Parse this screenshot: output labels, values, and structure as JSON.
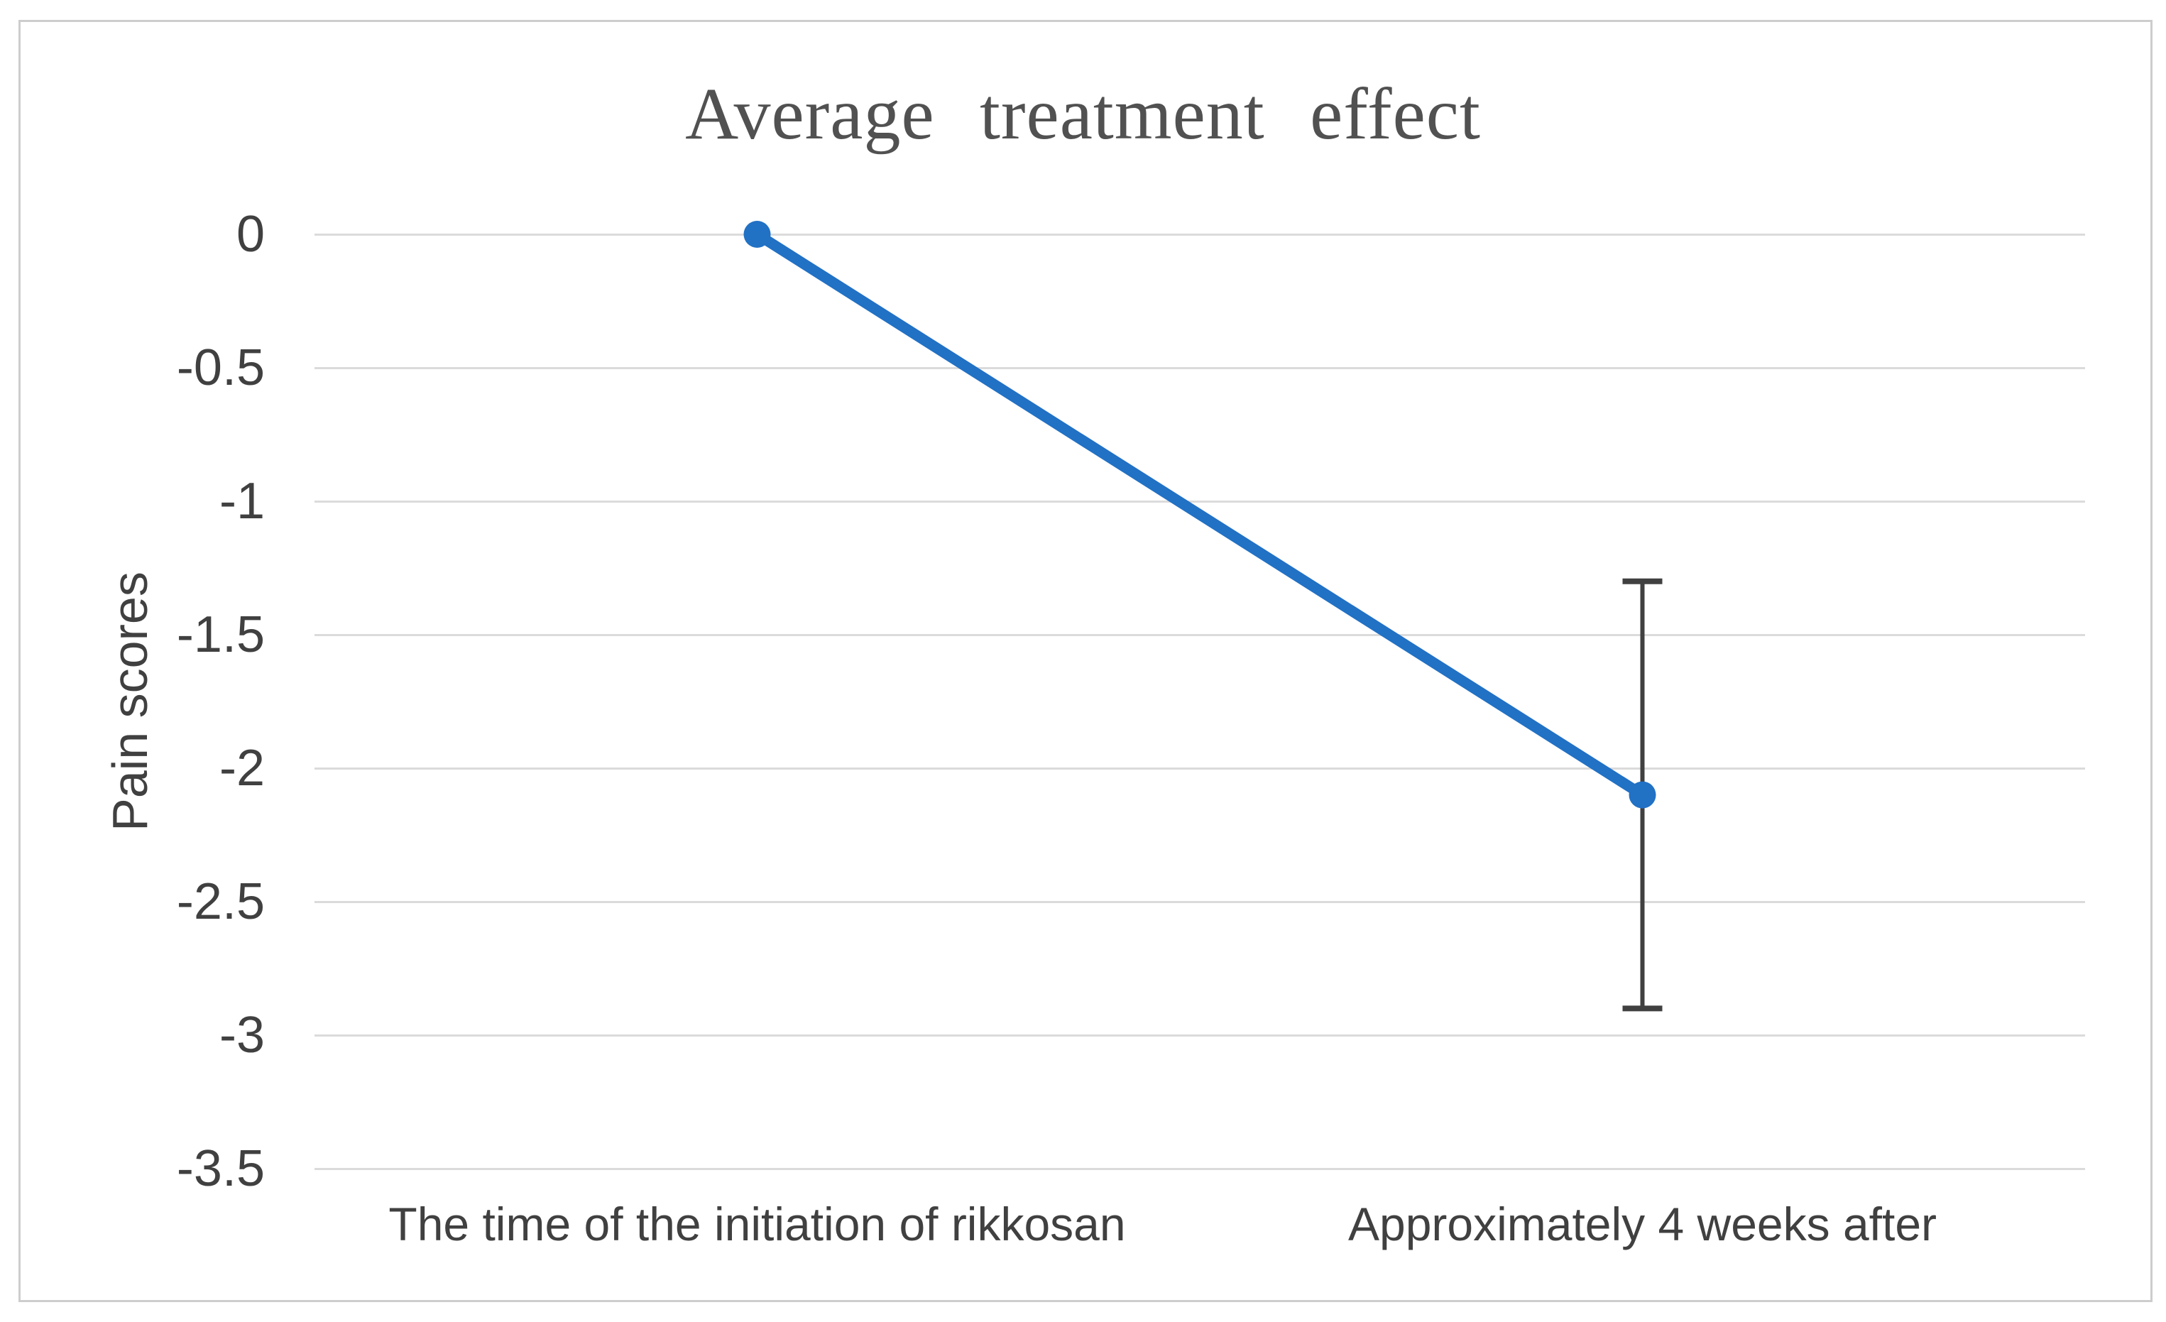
{
  "chart_data": {
    "type": "line",
    "title": "Average treatment effect",
    "xlabel": "",
    "ylabel": "Pain scores",
    "categories": [
      "The time of the initiation of rikkosan",
      "Approximately 4 weeks after"
    ],
    "series": [
      {
        "name": "Average treatment effect",
        "values": [
          0,
          -2.1
        ]
      }
    ],
    "error_bars": [
      {
        "category_index": 1,
        "value": -2.1,
        "upper": -1.3,
        "lower": -2.9
      }
    ],
    "ylim": [
      -3.5,
      0
    ],
    "yticks": [
      0,
      -0.5,
      -1,
      -1.5,
      -2,
      -2.5,
      -3,
      -3.5
    ],
    "ytick_labels": [
      "0",
      "-0.5",
      "-1",
      "-1.5",
      "-2",
      "-2.5",
      "-3",
      "-3.5"
    ],
    "grid": "horizontal",
    "legend": "none",
    "marker": "circle",
    "colors": {
      "series": "#2171C5",
      "gridline": "#DBDBDB",
      "error_bar": "#404040",
      "axis_text": "#404040",
      "title_text": "#515151",
      "chart_border": "#CDCDCD",
      "background": "#FFFFFF"
    }
  }
}
